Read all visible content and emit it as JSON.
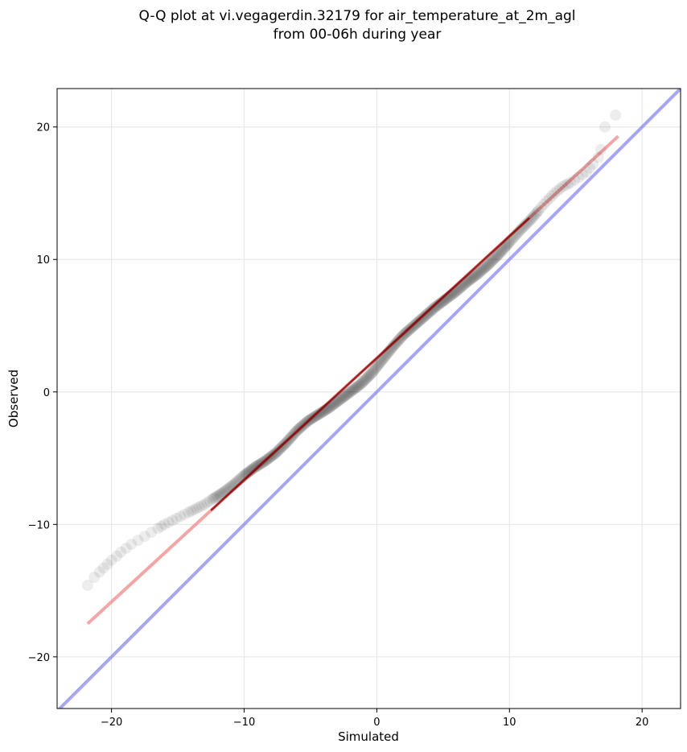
{
  "chart_data": {
    "type": "scatter",
    "title_lines": [
      "Q-Q plot at vi.vegagerdin.32179 for air_temperature_at_2m_agl",
      "from 00-06h during year"
    ],
    "xlabel": "Simulated",
    "ylabel": "Observed",
    "xlim": [
      -24.1,
      22.9
    ],
    "ylim": [
      -23.9,
      22.9
    ],
    "xticks": [
      -20,
      -10,
      0,
      10,
      20
    ],
    "yticks": [
      -20,
      -10,
      0,
      10,
      20
    ],
    "xtick_labels": [
      "−20",
      "−10",
      "0",
      "10",
      "20"
    ],
    "ytick_labels": [
      "−20",
      "−10",
      "0",
      "10",
      "20"
    ],
    "grid": true,
    "qq_points": {
      "x": [
        -21.8,
        -21.3,
        -20.9,
        -20.6,
        -20.3,
        -20.0,
        -19.6,
        -19.3,
        -18.9,
        -18.5,
        -18.0,
        -17.5,
        -17.0,
        -16.5,
        -16.0,
        -15.4,
        -14.8,
        -14.2,
        -13.6,
        -13.0,
        -12.4,
        -11.6,
        -10.8,
        -10.0,
        -9.2,
        -8.4,
        -7.6,
        -6.8,
        -6.0,
        -5.2,
        -4.4,
        -3.6,
        -2.8,
        -2.0,
        -1.2,
        -0.4,
        0.4,
        1.2,
        2.0,
        2.8,
        3.6,
        4.4,
        5.2,
        6.0,
        6.8,
        7.6,
        8.4,
        9.2,
        10.0,
        10.8,
        11.6,
        12.2,
        12.8,
        13.4,
        14.0,
        14.6,
        15.2,
        15.8,
        16.3,
        16.7,
        16.9,
        17.2,
        18.0
      ],
      "y": [
        -14.6,
        -14.0,
        -13.6,
        -13.3,
        -13.0,
        -12.7,
        -12.4,
        -12.1,
        -11.8,
        -11.5,
        -11.2,
        -10.9,
        -10.6,
        -10.3,
        -10.0,
        -9.7,
        -9.4,
        -9.1,
        -8.8,
        -8.5,
        -8.1,
        -7.6,
        -7.0,
        -6.3,
        -5.7,
        -5.2,
        -4.6,
        -3.8,
        -2.9,
        -2.2,
        -1.7,
        -1.2,
        -0.6,
        0.0,
        0.6,
        1.4,
        2.4,
        3.4,
        4.3,
        5.0,
        5.7,
        6.4,
        7.0,
        7.6,
        8.3,
        8.9,
        9.6,
        10.4,
        11.3,
        12.2,
        13.0,
        13.7,
        14.4,
        15.0,
        15.5,
        15.8,
        16.2,
        16.6,
        17.2,
        17.7,
        18.3,
        20.0,
        20.9
      ]
    },
    "fit_line": {
      "x": [
        -21.8,
        18.2
      ],
      "y": [
        -17.5,
        19.3
      ]
    },
    "identity_line": {
      "x": [
        -24.1,
        22.9
      ],
      "y": [
        -24.1,
        22.9
      ]
    },
    "colors": {
      "points": "#000000",
      "fit_line": "#f08080",
      "identity_line": "#8080f0",
      "dark_fit": "#8b0000",
      "grid": "#e8e8e8"
    }
  }
}
